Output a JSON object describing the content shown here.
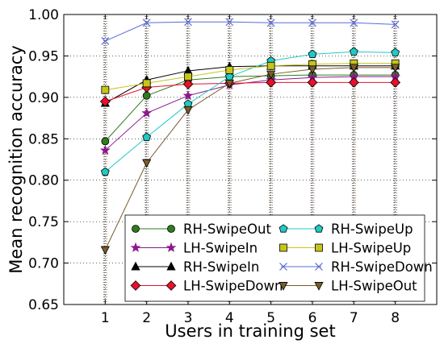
{
  "chart_data": {
    "type": "line",
    "xlabel": "Users in training set",
    "ylabel": "Mean recognition accuracy",
    "x": [
      1,
      2,
      3,
      4,
      5,
      6,
      7,
      8
    ],
    "xlim": [
      0,
      9
    ],
    "ylim": [
      0.65,
      1.0
    ],
    "xticks": [
      "1",
      "2",
      "3",
      "4",
      "5",
      "6",
      "7",
      "8"
    ],
    "yticks": [
      "0.65",
      "0.70",
      "0.75",
      "0.80",
      "0.85",
      "0.90",
      "0.95",
      "1.00"
    ],
    "grid": true,
    "legend_position": "lower-right",
    "series": [
      {
        "name": "RH-SwipeOut",
        "color": "#2e7d1e",
        "marker": "circle",
        "values": [
          0.847,
          0.902,
          0.921,
          0.925,
          0.926,
          0.927,
          0.927,
          0.927
        ]
      },
      {
        "name": "LH-SwipeIn",
        "color": "#8b1a8b",
        "marker": "star",
        "values": [
          0.836,
          0.881,
          0.902,
          0.915,
          0.921,
          0.924,
          0.925,
          0.925
        ]
      },
      {
        "name": "RH-SwipeIn",
        "color": "#000000",
        "marker": "triangle-up",
        "values": [
          0.893,
          0.921,
          0.932,
          0.937,
          0.938,
          0.938,
          0.938,
          0.938
        ]
      },
      {
        "name": "LH-SwipeDown",
        "color": "#e8102a",
        "marker": "diamond",
        "values": [
          0.895,
          0.912,
          0.916,
          0.917,
          0.918,
          0.918,
          0.918,
          0.918
        ]
      },
      {
        "name": "RH-SwipeUp",
        "color": "#1ecbc4",
        "marker": "pentagon",
        "values": [
          0.81,
          0.852,
          0.892,
          0.925,
          0.944,
          0.952,
          0.955,
          0.954
        ]
      },
      {
        "name": "LH-SwipeUp",
        "color": "#c5c51a",
        "marker": "square",
        "values": [
          0.909,
          0.917,
          0.925,
          0.933,
          0.938,
          0.94,
          0.941,
          0.941
        ]
      },
      {
        "name": "RH-SwipeDown",
        "color": "#5a6bd6",
        "marker": "x",
        "values": [
          0.968,
          0.99,
          0.991,
          0.991,
          0.99,
          0.99,
          0.99,
          0.988
        ]
      },
      {
        "name": "LH-SwipeOut",
        "color": "#7a5c2b",
        "marker": "triangle-down",
        "values": [
          0.716,
          0.821,
          0.885,
          0.917,
          0.928,
          0.934,
          0.936,
          0.936
        ]
      }
    ]
  }
}
